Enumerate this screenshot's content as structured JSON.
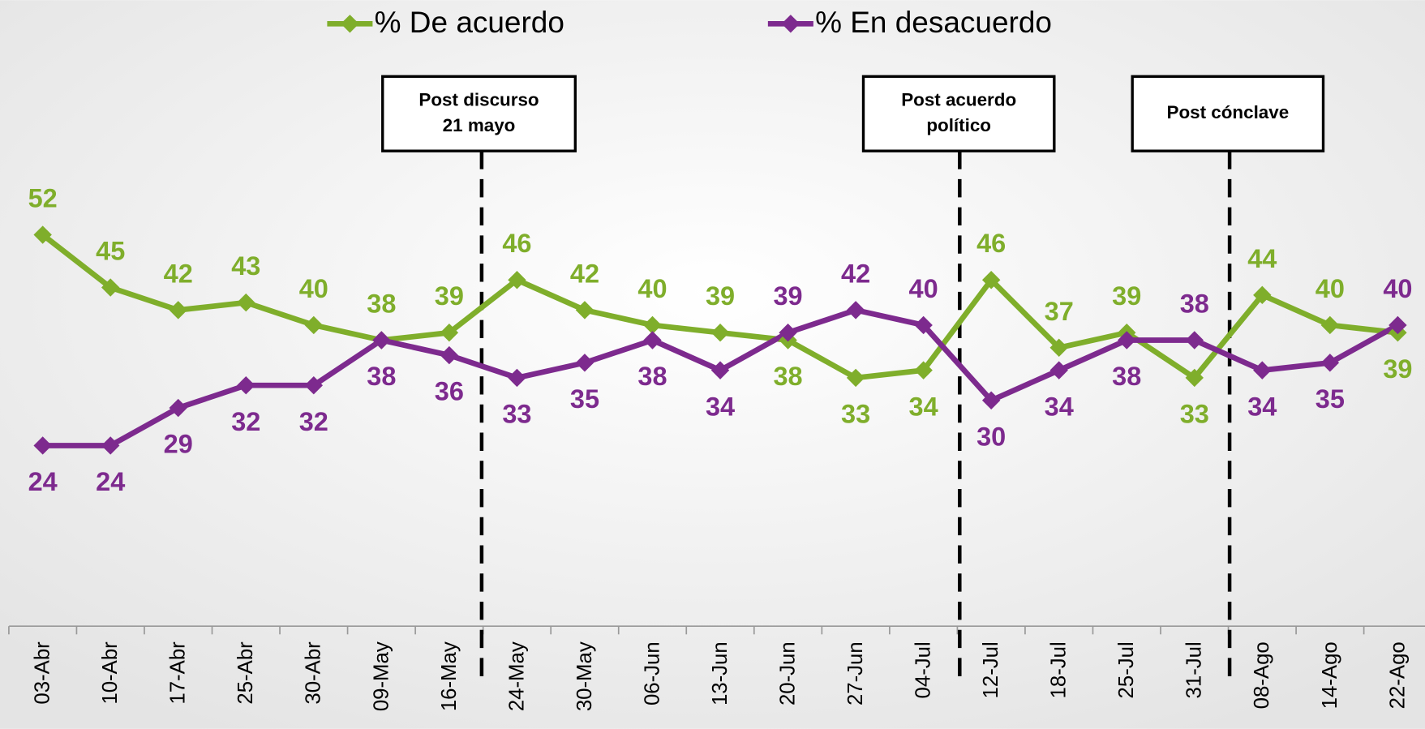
{
  "chart_data": {
    "type": "line",
    "categories": [
      "03-Abr",
      "10-Abr",
      "17-Abr",
      "25-Abr",
      "30-Abr",
      "09-May",
      "16-May",
      "24-May",
      "30-May",
      "06-Jun",
      "13-Jun",
      "20-Jun",
      "27-Jun",
      "04-Jul",
      "12-Jul",
      "18-Jul",
      "25-Jul",
      "31-Jul",
      "08-Ago",
      "14-Ago",
      "22-Ago"
    ],
    "series": [
      {
        "name": "% De acuerdo",
        "color": "#7fae2b",
        "values": [
          52,
          45,
          42,
          43,
          40,
          38,
          39,
          46,
          42,
          40,
          39,
          38,
          33,
          34,
          46,
          37,
          39,
          33,
          44,
          40,
          39
        ]
      },
      {
        "name": "% En desacuerdo",
        "color": "#7d2a8e",
        "values": [
          24,
          24,
          29,
          32,
          32,
          38,
          36,
          33,
          35,
          38,
          34,
          39,
          42,
          40,
          30,
          34,
          38,
          38,
          34,
          35,
          40
        ]
      }
    ],
    "ylim": [
      0,
      60
    ],
    "annotations": [
      {
        "lines": [
          "Post discurso",
          "21 mayo"
        ]
      },
      {
        "lines": [
          "Post acuerdo",
          "político"
        ]
      },
      {
        "lines": [
          "Post cónclave"
        ]
      }
    ]
  }
}
